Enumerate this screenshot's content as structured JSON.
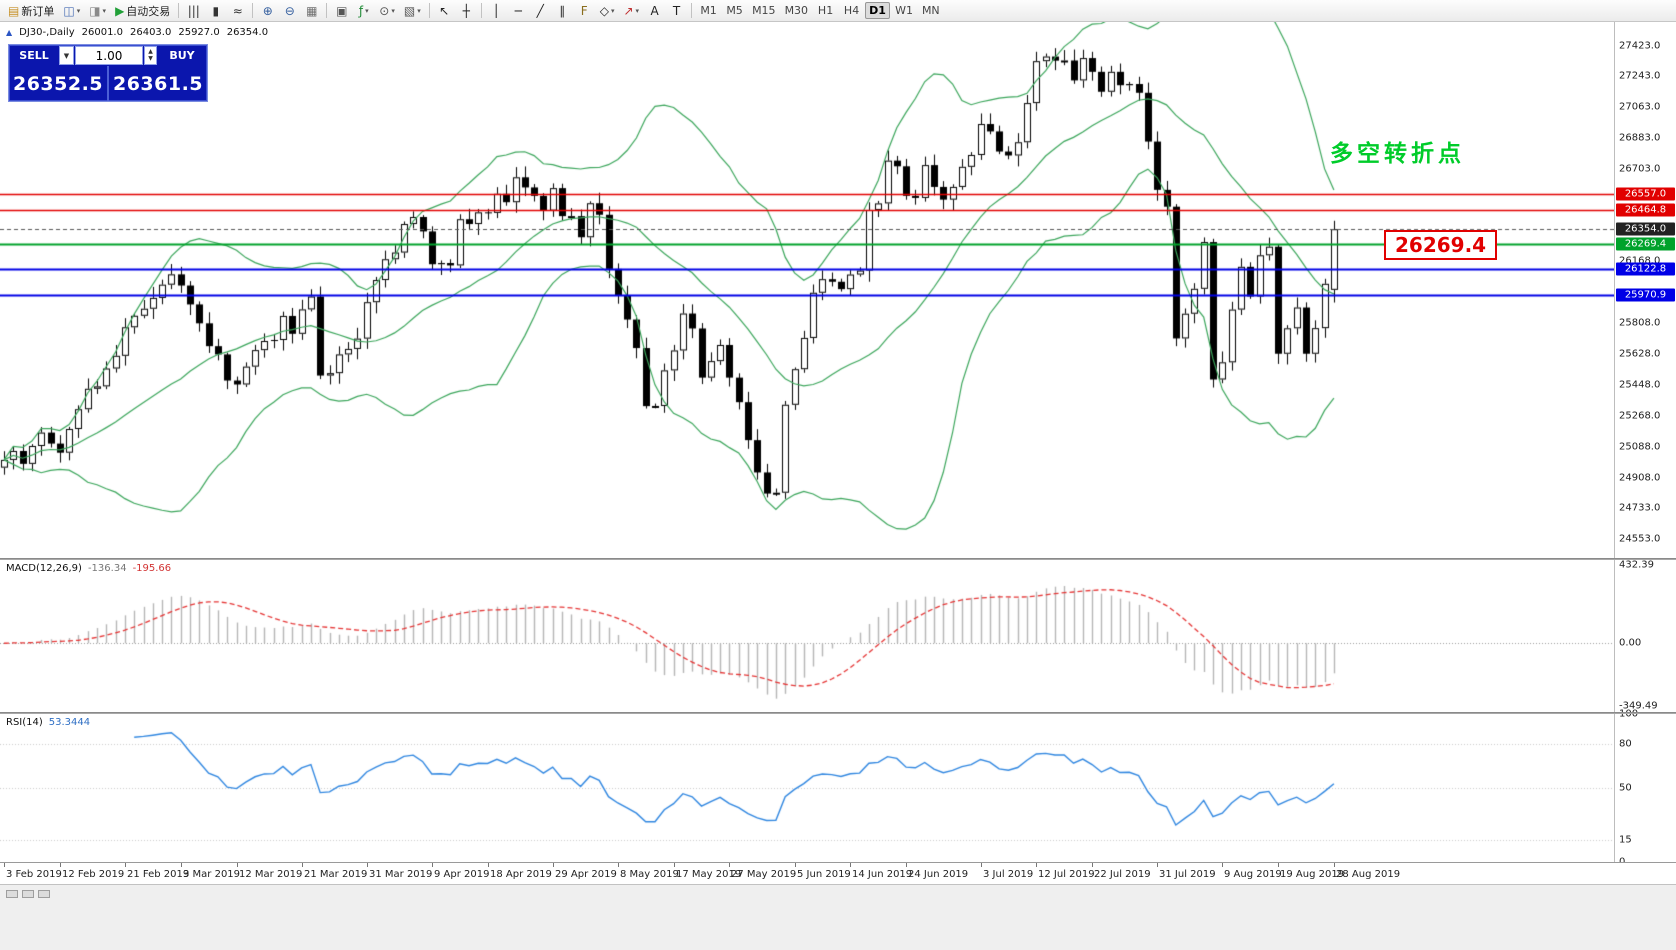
{
  "colors": {
    "background": "#ffffff",
    "bollinger": "#3aa55a",
    "candle_up_fill": "#ffffff",
    "candle_down_fill": "#000000",
    "candle_border": "#000000",
    "macd_histogram": "#b5b5b5",
    "macd_signal": "#e53535",
    "rsi_line": "#2f86e0",
    "annotation_green": "#00cc2a",
    "annotation_red": "#e10000",
    "panel_blue": "#0b16ad",
    "current_label_bg": "#222222"
  },
  "toolbar": {
    "buttons": [
      {
        "name": "new-order-button",
        "glyph": "▤",
        "glyph_color": "#c69026",
        "label": "新订单"
      },
      {
        "name": "new-chart-button",
        "glyph": "◫",
        "glyph_color": "#4a6fb5",
        "dropdown": true
      },
      {
        "name": "profiles-button",
        "glyph": "◨",
        "glyph_color": "#8a8a8a",
        "dropdown": true
      },
      {
        "name": "autotrading-button",
        "glyph": "▶",
        "glyph_color": "#21a038",
        "label": "自动交易"
      },
      {
        "sep": true
      },
      {
        "name": "bar-chart-button",
        "glyph": "|||",
        "glyph_color": "#333333"
      },
      {
        "name": "candlestick-chart-button",
        "glyph": "▮",
        "glyph_color": "#333333"
      },
      {
        "name": "line-chart-button",
        "glyph": "≈",
        "glyph_color": "#333333"
      },
      {
        "sep": true
      },
      {
        "name": "zoom-in-button",
        "glyph": "⊕",
        "glyph_color": "#335e9e"
      },
      {
        "name": "zoom-out-button",
        "glyph": "⊖",
        "glyph_color": "#335e9e"
      },
      {
        "name": "grid-button",
        "glyph": "▦",
        "glyph_color": "#6f6f6f"
      },
      {
        "sep": true
      },
      {
        "name": "tile-windows-button",
        "glyph": "▣",
        "glyph_color": "#555555"
      },
      {
        "name": "indicators-button",
        "glyph": "ƒ",
        "glyph_color": "#1d8a34",
        "dropdown": true
      },
      {
        "name": "periods-button",
        "glyph": "⊙",
        "glyph_color": "#555555",
        "dropdown": true
      },
      {
        "name": "templates-button",
        "glyph": "▧",
        "glyph_color": "#555555",
        "dropdown": true
      },
      {
        "sep": true
      },
      {
        "name": "cursor-button",
        "glyph": "↖",
        "glyph_color": "#222222"
      },
      {
        "name": "crosshair-button",
        "glyph": "┼",
        "glyph_color": "#222222"
      },
      {
        "sep": true
      },
      {
        "name": "vertical-line-button",
        "glyph": "│",
        "glyph_color": "#222222"
      },
      {
        "name": "horizontal-line-button",
        "glyph": "─",
        "glyph_color": "#222222"
      },
      {
        "name": "trendline-button",
        "glyph": "╱",
        "glyph_color": "#222222"
      },
      {
        "name": "channel-button",
        "glyph": "∥",
        "glyph_color": "#222222"
      },
      {
        "name": "fibonacci-button",
        "glyph": "F",
        "glyph_color": "#8a6d1d"
      },
      {
        "name": "shapes-button",
        "glyph": "◇",
        "glyph_color": "#222222",
        "dropdown": true
      },
      {
        "name": "arrows-button",
        "glyph": "↗",
        "glyph_color": "#c03030",
        "dropdown": true
      },
      {
        "name": "text-button",
        "glyph": "A",
        "glyph_color": "#222222"
      },
      {
        "name": "label-button",
        "glyph": "T",
        "glyph_color": "#222222"
      },
      {
        "sep": true
      }
    ],
    "timeframes": [
      {
        "label": "M1"
      },
      {
        "label": "M5"
      },
      {
        "label": "M15"
      },
      {
        "label": "M30"
      },
      {
        "label": "H1"
      },
      {
        "label": "H4"
      },
      {
        "label": "D1",
        "active": true
      },
      {
        "label": "W1"
      },
      {
        "label": "MN"
      }
    ]
  },
  "symbol_header": {
    "title": "DJ30-,Daily",
    "open": "26001.0",
    "high": "26403.0",
    "low": "25927.0",
    "close": "26354.0"
  },
  "trade_panel": {
    "sell_label": "SELL",
    "buy_label": "BUY",
    "volume": "1.00",
    "sell_price": "26352.5",
    "buy_price": "26361.5"
  },
  "annotations": {
    "turning_point": "多空转折点",
    "price_box": "26269.4"
  },
  "indicators": {
    "macd_name": "MACD(12,26,9)",
    "macd_main": "-136.34",
    "macd_signal": "-195.66",
    "rsi_name": "RSI(14)",
    "rsi_value": "53.3444"
  },
  "levels": [
    {
      "price": 26557.0,
      "label": "26557.0",
      "color": "#e10000",
      "width": 1.4
    },
    {
      "price": 26464.8,
      "label": "26464.8",
      "color": "#e10000",
      "width": 1.4
    },
    {
      "price": 26269.4,
      "label": "26269.4",
      "color": "#00a22b",
      "width": 2
    },
    {
      "price": 26122.8,
      "label": "26122.8",
      "color": "#0000e6",
      "width": 2
    },
    {
      "price": 25970.9,
      "label": "25970.9",
      "color": "#0000e6",
      "width": 2
    }
  ],
  "current_price": {
    "value": 26354.0,
    "label": "26354.0"
  },
  "axis": {
    "price_ticks": [
      "27423.0",
      "27243.0",
      "27063.0",
      "26883.0",
      "26703.0",
      "26168.0",
      "25808.0",
      "25628.0",
      "25448.0",
      "25268.0",
      "25088.0",
      "24908.0",
      "24733.0",
      "24553.0"
    ],
    "macd_ticks": [
      {
        "label": "432.39",
        "value": 432.39
      },
      {
        "label": "0.00",
        "value": 0
      },
      {
        "label": "-349.49",
        "value": -349.49
      }
    ],
    "rsi_ticks": [
      {
        "label": "100",
        "value": 100
      },
      {
        "label": "80",
        "value": 80
      },
      {
        "label": "50",
        "value": 50
      },
      {
        "label": "15",
        "value": 15
      },
      {
        "label": "0",
        "value": 0
      }
    ],
    "dates": [
      "3 Feb 2019",
      "12 Feb 2019",
      "21 Feb 2019",
      "3 Mar 2019",
      "12 Mar 2019",
      "21 Mar 2019",
      "31 Mar 2019",
      "9 Apr 2019",
      "18 Apr 2019",
      "29 Apr 2019",
      "8 May 2019",
      "17 May 2019",
      "27 May 2019",
      "5 Jun 2019",
      "14 Jun 2019",
      "24 Jun 2019",
      "3 Jul 2019",
      "12 Jul 2019",
      "22 Jul 2019",
      "31 Jul 2019",
      "9 Aug 2019",
      "19 Aug 2019",
      "28 Aug 2019"
    ],
    "date_indices": [
      0,
      6,
      13,
      19,
      25,
      32,
      39,
      46,
      52,
      59,
      66,
      72,
      78,
      85,
      91,
      97,
      105,
      111,
      117,
      124,
      131,
      137,
      143
    ]
  },
  "chart_data": {
    "type": "candlestick",
    "symbol": "DJ30",
    "timeframe": "Daily",
    "overlays": [
      "Bollinger Bands (20,2)"
    ],
    "sub_indicators": [
      "MACD(12,26,9)",
      "RSI(14)"
    ],
    "price_range": [
      24440,
      27560
    ],
    "macd_range": [
      -380,
      460
    ],
    "rsi_range": [
      0,
      100
    ],
    "last_candle": {
      "open": 26001.0,
      "high": 26403.0,
      "low": 25927.0,
      "close": 26354.0
    },
    "closes": [
      25011,
      25063,
      24988,
      25092,
      25170,
      25106,
      25053,
      25191,
      25306,
      25425,
      25439,
      25543,
      25617,
      25783,
      25850,
      25891,
      25954,
      26031,
      26091,
      26026,
      25916,
      25806,
      25673,
      25625,
      25473,
      25450,
      25554,
      25650,
      25703,
      25709,
      25849,
      25745,
      25887,
      25962,
      25502,
      25516,
      25625,
      25657,
      25717,
      25929,
      26058,
      26179,
      26218,
      26384,
      26425,
      26341,
      26150,
      26157,
      26143,
      26412,
      26384,
      26452,
      26449,
      26560,
      26511,
      26656,
      26597,
      26548,
      26462,
      26593,
      26430,
      26430,
      26307,
      26505,
      26438,
      26123,
      25965,
      25828,
      25662,
      25324,
      25325,
      25532,
      25648,
      25863,
      25776,
      25490,
      25586,
      25680,
      25490,
      25347,
      25126,
      24938,
      24815,
      24820,
      25332,
      25539,
      25721,
      25984,
      26063,
      26048,
      26005,
      26090,
      26113,
      26466,
      26504,
      26753,
      26720,
      26548,
      26536,
      26727,
      26600,
      26526,
      26600,
      26717,
      26786,
      26966,
      26923,
      26806,
      26783,
      26860,
      27088,
      27332,
      27359,
      27335,
      27336,
      27220,
      27350,
      27270,
      27154,
      27270,
      27192,
      27199,
      27148,
      26864,
      26583,
      26485,
      25718,
      25862,
      26007,
      26279,
      25479,
      25579,
      25886,
      26135,
      25962,
      26202,
      26252,
      25629,
      25777,
      25898,
      25629,
      25778,
      26036,
      26354
    ]
  }
}
